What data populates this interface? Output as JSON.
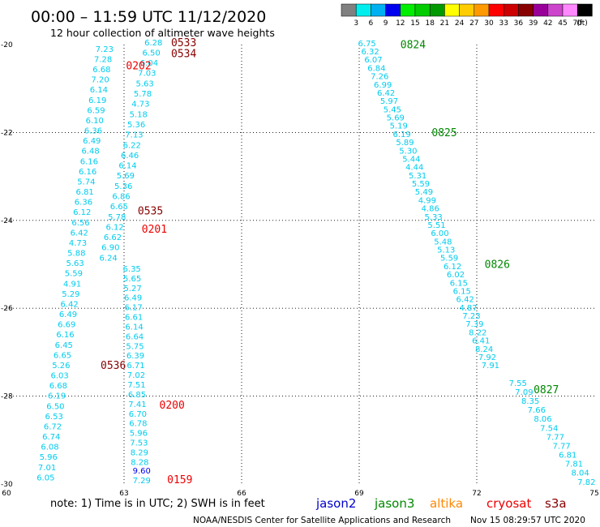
{
  "header": {
    "title": "00:00 – 11:59 UTC 11/12/2020",
    "subtitle": "12 hour collection of altimeter wave heights"
  },
  "legend": {
    "unit": "(ft)",
    "bins": [
      {
        "label": "3",
        "color": "#808080"
      },
      {
        "label": "6",
        "color": "#00eeee"
      },
      {
        "label": "9",
        "color": "#00b0f0"
      },
      {
        "label": "12",
        "color": "#0000ee"
      },
      {
        "label": "15",
        "color": "#00ee00"
      },
      {
        "label": "18",
        "color": "#00cc00"
      },
      {
        "label": "21",
        "color": "#009900"
      },
      {
        "label": "24",
        "color": "#ffff00"
      },
      {
        "label": "27",
        "color": "#ffcc00"
      },
      {
        "label": "30",
        "color": "#ff9900"
      },
      {
        "label": "33",
        "color": "#ff0000"
      },
      {
        "label": "36",
        "color": "#cc0000"
      },
      {
        "label": "39",
        "color": "#880000"
      },
      {
        "label": "42",
        "color": "#990099"
      },
      {
        "label": "45",
        "color": "#cc44cc"
      },
      {
        "label": "70",
        "color": "#ff88ff"
      },
      {
        "label": "",
        "color": "#000000"
      }
    ]
  },
  "footer": {
    "note": "note: 1) Time is in UTC; 2) SWH is in feet",
    "satellites": [
      {
        "name": "jason2",
        "color": "#0000cc"
      },
      {
        "name": "jason3",
        "color": "#008800"
      },
      {
        "name": "altika",
        "color": "#ff8800"
      },
      {
        "name": "cryosat",
        "color": "#ee0000"
      },
      {
        "name": "s3a",
        "color": "#880000"
      }
    ],
    "credit": "NOAA/NESDIS Center for Satellite Applications and Research",
    "timestamp": "Nov 15 08:29:57 UTC 2020"
  },
  "chart_data": {
    "type": "scatter",
    "title": "00:00 – 11:59 UTC 11/12/2020",
    "subtitle": "12 hour collection of altimeter wave heights",
    "xlabel": "",
    "ylabel": "",
    "xlim": [
      60,
      75
    ],
    "ylim": [
      -30,
      -20
    ],
    "xticks": [
      "60",
      "63",
      "66",
      "69",
      "72",
      "75"
    ],
    "yticks": [
      "-20",
      "-22",
      "-24",
      "-26",
      "-28",
      "-30"
    ],
    "grid": "dotted",
    "colors": {
      "light": "#00ccee",
      "med": "#00a0dd",
      "dark": "#0000ee",
      "cryosat": "#ee0000",
      "s3a": "#880000",
      "jason3": "#008800"
    },
    "pass_labels": [
      {
        "text": "0533",
        "lon": 64.2,
        "lat": -19.95,
        "color": "s3a"
      },
      {
        "text": "0534",
        "lon": 64.2,
        "lat": -20.2,
        "color": "s3a"
      },
      {
        "text": "0202",
        "lon": 63.05,
        "lat": -20.48,
        "color": "cryosat"
      },
      {
        "text": "0535",
        "lon": 63.35,
        "lat": -23.78,
        "color": "s3a"
      },
      {
        "text": "0201",
        "lon": 63.45,
        "lat": -24.2,
        "color": "cryosat"
      },
      {
        "text": "0536",
        "lon": 62.4,
        "lat": -27.3,
        "color": "s3a"
      },
      {
        "text": "0200",
        "lon": 63.9,
        "lat": -28.2,
        "color": "cryosat"
      },
      {
        "text": "0159",
        "lon": 64.1,
        "lat": -29.9,
        "color": "cryosat"
      },
      {
        "text": "0824",
        "lon": 70.05,
        "lat": -20.0,
        "color": "jason3"
      },
      {
        "text": "0825",
        "lon": 70.85,
        "lat": -22.0,
        "color": "jason3"
      },
      {
        "text": "0826",
        "lon": 72.2,
        "lat": -25.0,
        "color": "jason3"
      },
      {
        "text": "0827",
        "lon": 73.45,
        "lat": -27.85,
        "color": "jason3"
      }
    ],
    "tracks": [
      {
        "name": "",
        "color": "light",
        "lon_start": 62.5,
        "lon_end": 61.0,
        "lat_start": -20.1,
        "lat_end": -29.85,
        "values": [
          "7.23",
          "7.28",
          "6.68",
          "7.20",
          "6.14",
          "6.19",
          "6.59",
          "6.10",
          "6.36",
          "6.49",
          "6.48",
          "6.16",
          "6.16",
          "5.74",
          "6.81",
          "6.36",
          "6.12",
          "6.56",
          "6.42",
          "4.73",
          "5.88",
          "5.63",
          "5.59",
          "4.91",
          "5.29",
          "6.42",
          "6.49",
          "6.69",
          "6.16",
          "6.45",
          "6.65",
          "5.26",
          "6.03",
          "6.68",
          "6.19",
          "6.50",
          "6.53",
          "6.72",
          "6.74",
          "6.08",
          "5.96",
          "7.01",
          "6.05"
        ]
      },
      {
        "name": "",
        "color": "light",
        "lon_start": 63.75,
        "lon_end": 62.6,
        "lat_start": -19.95,
        "lat_end": -24.85,
        "values": [
          "6.28",
          "6.50",
          "6.04",
          "7.03",
          "5.63",
          "5.78",
          "4.73",
          "5.18",
          "5.36",
          "7.13",
          "6.22",
          "6.46",
          "6.14",
          "5.69",
          "5.36",
          "6.86",
          "6.65",
          "5.78",
          "6.12",
          "6.62",
          "6.90",
          "6.24"
        ]
      },
      {
        "name": "",
        "color": "light",
        "lon_start": 63.2,
        "lon_end": 63.4,
        "lat_start": -25.1,
        "lat_end": -29.5,
        "values": [
          "6.35",
          "5.65",
          "5.27",
          "6.49",
          "6.17",
          "6.61",
          "6.14",
          "6.64",
          "5.75",
          "6.39",
          "6.71",
          "7.02",
          "7.51",
          "6.85",
          "7.41",
          "6.70",
          "6.78",
          "5.96",
          "7.53",
          "8.29",
          "8.28"
        ]
      },
      {
        "name": "",
        "color": "dark",
        "lon_start": 63.45,
        "lon_end": 63.45,
        "lat_start": -29.7,
        "lat_end": -29.7,
        "values": [
          "9.60"
        ]
      },
      {
        "name": "",
        "color": "light",
        "lon_start": 63.45,
        "lon_end": 63.45,
        "lat_start": -29.92,
        "lat_end": -29.92,
        "values": [
          "7.29"
        ]
      },
      {
        "name": "",
        "color": "light",
        "lon_start": 69.2,
        "lon_end": 72.35,
        "lat_start": -19.97,
        "lat_end": -27.3,
        "values": [
          "6.75",
          "6.32",
          "6.07",
          "6.84",
          "7.26",
          "6.99",
          "6.42",
          "5.97",
          "5.45",
          "5.69",
          "5.19",
          "6.19",
          "5.89",
          "5.30",
          "5.44",
          "4.44",
          "5.31",
          "5.59",
          "5.49",
          "4.99",
          "4.86",
          "5.33",
          "5.51",
          "6.00",
          "5.48",
          "5.13",
          "5.59",
          "6.12",
          "6.02",
          "6.15",
          "6.15",
          "6.42",
          "4.87",
          "7.23",
          "7.39",
          "8.22",
          "6.41",
          "8.24",
          "7.92",
          "7.91"
        ]
      },
      {
        "name": "",
        "color": "light",
        "lon_start": 73.05,
        "lon_end": 74.8,
        "lat_start": -27.7,
        "lat_end": -29.95,
        "values": [
          "7.55",
          "7.09",
          "8.35",
          "7.66",
          "8.06",
          "7.54",
          "7.77",
          "7.77",
          "6.81",
          "7.81",
          "8.04",
          "7.82"
        ]
      }
    ]
  }
}
